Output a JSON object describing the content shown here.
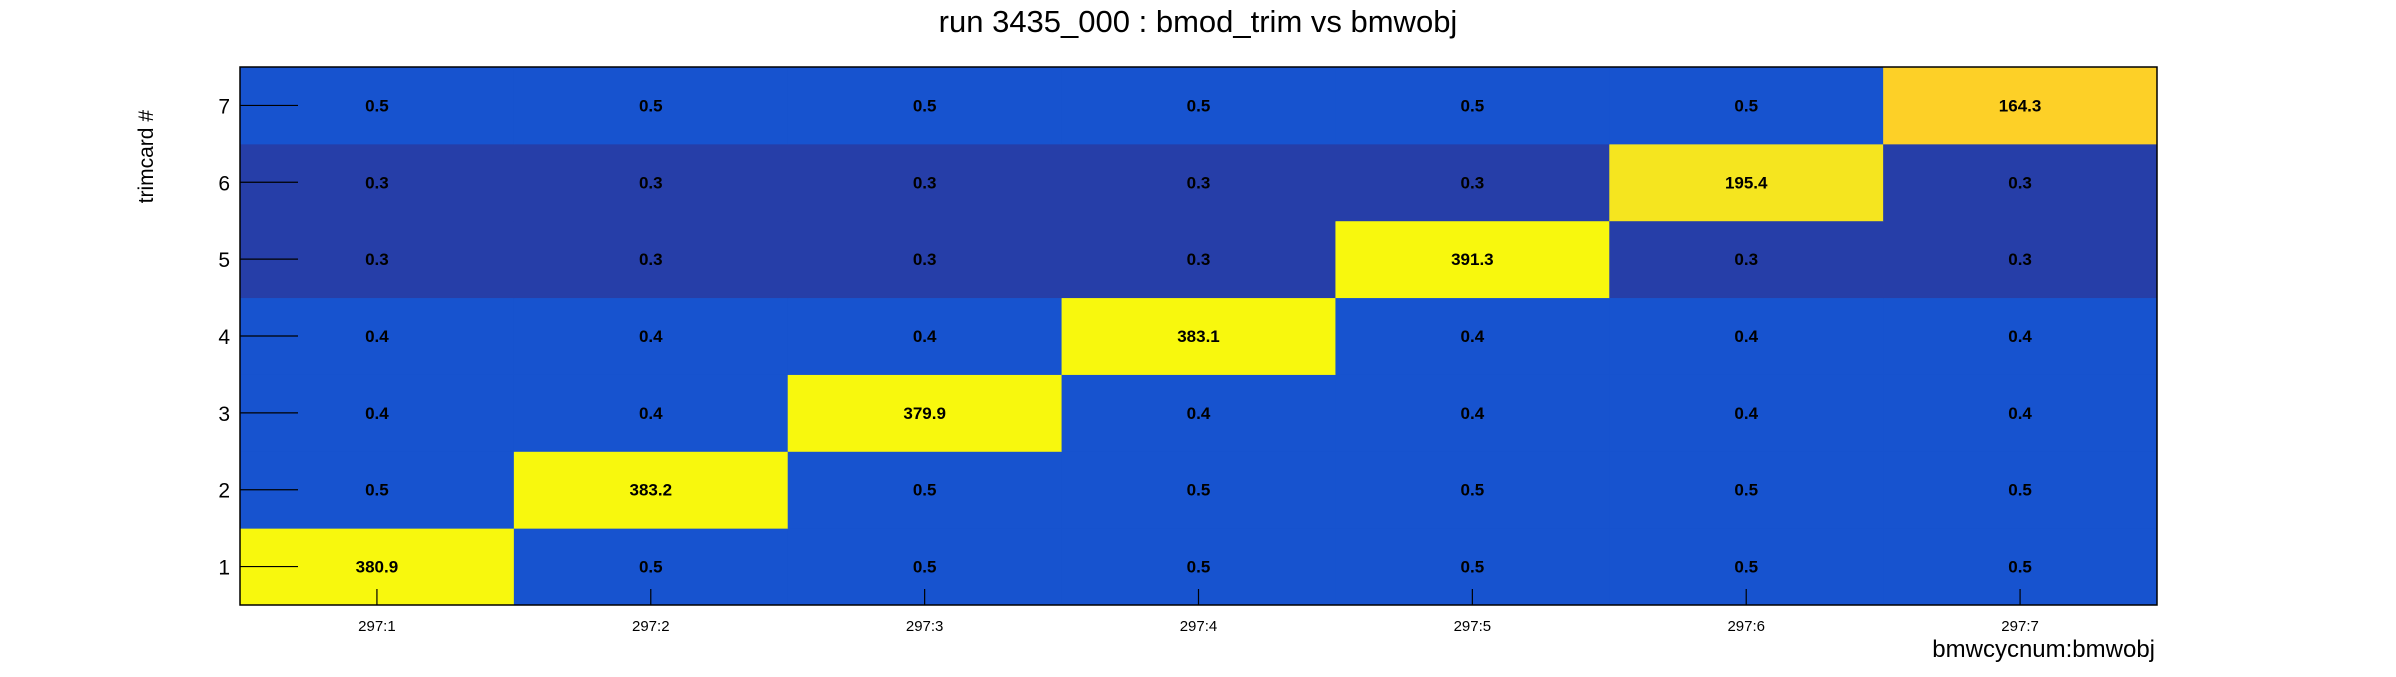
{
  "chart_data": {
    "type": "heatmap",
    "title": "run 3435_000 : bmod_trim vs bmwobj",
    "xlabel": "bmwcycnum:bmwobj",
    "ylabel": "trimcard #",
    "x_categories": [
      "297:1",
      "297:2",
      "297:3",
      "297:4",
      "297:5",
      "297:6",
      "297:7"
    ],
    "y_categories": [
      "1",
      "2",
      "3",
      "4",
      "5",
      "6",
      "7"
    ],
    "cells": [
      [
        "380.9",
        "0.5",
        "0.5",
        "0.5",
        "0.5",
        "0.5",
        "0.5"
      ],
      [
        "0.5",
        "383.2",
        "0.5",
        "0.5",
        "0.5",
        "0.5",
        "0.5"
      ],
      [
        "0.4",
        "0.4",
        "379.9",
        "0.4",
        "0.4",
        "0.4",
        "0.4"
      ],
      [
        "0.4",
        "0.4",
        "0.4",
        "383.1",
        "0.4",
        "0.4",
        "0.4"
      ],
      [
        "0.3",
        "0.3",
        "0.3",
        "0.3",
        "391.3",
        "0.3",
        "0.3"
      ],
      [
        "0.3",
        "0.3",
        "0.3",
        "0.3",
        "0.3",
        "195.4",
        "0.3"
      ],
      [
        "0.5",
        "0.5",
        "0.5",
        "0.5",
        "0.5",
        "0.5",
        "164.3"
      ]
    ],
    "colors": {
      "low_0_3": "#263ea8",
      "low_0_4_0_5": "#1753cf",
      "high_164": "#fdd027",
      "high_195": "#f5e51f",
      "high_380": "#f8f80d",
      "frame": "#000000",
      "label_text": "#000000"
    }
  }
}
